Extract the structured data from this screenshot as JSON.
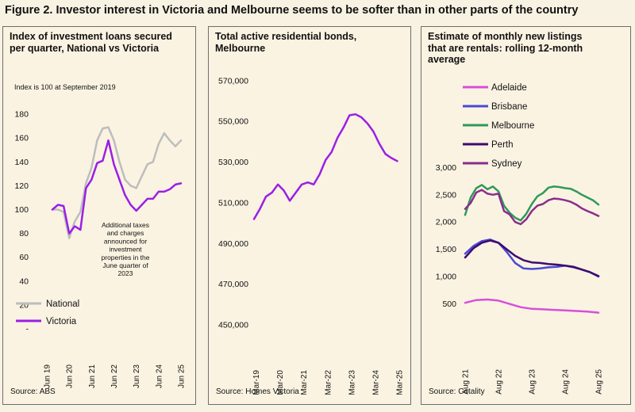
{
  "figure_title": "Figure 2. Investor interest in Victoria and Melbourne seems to be softer than in other parts of the country",
  "colors": {
    "background": "#f8f2e3",
    "national": "#bdbdbd",
    "victoria": "#9b1fe5",
    "melbourne_bonds": "#9b1fe5",
    "adelaide": "#d84fd8",
    "brisbane": "#4a49d6",
    "melbourne": "#2f9a5a",
    "perth": "#3f0a6e",
    "sydney": "#8a2d8c"
  },
  "panels": [
    {
      "title": "Index of investment loans secured per quarter, National vs Victoria",
      "note": "Index is 100 at September 2019",
      "source": "Source: ABS",
      "annotation": [
        "Additional taxes",
        "and charges",
        "announced for",
        "investment",
        "properties in the",
        "June quarter of",
        "2023"
      ]
    },
    {
      "title": "Total active residential bonds, Melbourne",
      "source": "Source: Homes Victoria"
    },
    {
      "title": "Estimate of monthly new listings that are rentals: rolling 12-month average",
      "source": "Source: Cotality"
    }
  ],
  "chart_data": [
    {
      "type": "line",
      "title": "Index of investment loans secured per quarter, National vs Victoria",
      "ylim": [
        0,
        190
      ],
      "yticks": [
        0,
        20,
        40,
        60,
        80,
        100,
        120,
        140,
        160,
        180
      ],
      "ytick_labels": [
        "-",
        "20",
        "40",
        "60",
        "80",
        "100",
        "120",
        "140",
        "160",
        "180"
      ],
      "xlim": [
        0,
        24
      ],
      "xticks": [
        0,
        4,
        8,
        12,
        16,
        20,
        24
      ],
      "xtick_labels": [
        "Jun 19",
        "Jun 20",
        "Jun 21",
        "Jun 22",
        "Jun 23",
        "Jun 24",
        "Jun 25"
      ],
      "legend": "bottom-left",
      "series": [
        {
          "name": "National",
          "x": [
            1,
            2,
            3,
            4,
            5,
            6,
            7,
            8,
            9,
            10,
            11,
            12,
            13,
            14,
            15,
            16,
            17,
            18,
            19,
            20,
            21,
            22,
            23,
            24
          ],
          "values": [
            100,
            100,
            98,
            76,
            90,
            98,
            122,
            135,
            158,
            168,
            169,
            158,
            140,
            125,
            120,
            118,
            128,
            138,
            140,
            155,
            164,
            158,
            153,
            158
          ]
        },
        {
          "name": "Victoria",
          "x": [
            1,
            2,
            3,
            4,
            5,
            6,
            7,
            8,
            9,
            10,
            11,
            12,
            13,
            14,
            15,
            16,
            17,
            18,
            19,
            20,
            21,
            22,
            23,
            24
          ],
          "values": [
            100,
            104,
            103,
            80,
            86,
            83,
            118,
            125,
            139,
            141,
            158,
            138,
            125,
            112,
            104,
            99,
            104,
            109,
            109,
            115,
            115,
            117,
            121,
            122
          ]
        }
      ]
    },
    {
      "type": "line",
      "title": "Total active residential bonds, Melbourne",
      "ylim": [
        450000,
        575000
      ],
      "yticks": [
        450000,
        470000,
        490000,
        510000,
        530000,
        550000,
        570000
      ],
      "ytick_labels": [
        "450,000",
        "470,000",
        "490,000",
        "510,000",
        "530,000",
        "550,000",
        "570,000"
      ],
      "xlim": [
        0,
        73
      ],
      "xticks": [
        1,
        13,
        25,
        37,
        49,
        61,
        73
      ],
      "xtick_labels": [
        "Mar-19",
        "Mar-20",
        "Mar-21",
        "Mar-22",
        "Mar-23",
        "Mar-24",
        "Mar-25"
      ],
      "series": [
        {
          "name": "Melbourne",
          "x": [
            0,
            3,
            6,
            9,
            12,
            15,
            18,
            21,
            24,
            27,
            30,
            33,
            36,
            39,
            42,
            45,
            48,
            51,
            54,
            57,
            60,
            63,
            66,
            69,
            72
          ],
          "values": [
            502000,
            507000,
            513000,
            515000,
            519000,
            516000,
            511000,
            515000,
            519000,
            520000,
            519000,
            524000,
            531000,
            535000,
            542000,
            547000,
            553000,
            553500,
            552000,
            549000,
            545000,
            539000,
            534000,
            532000,
            530500
          ]
        }
      ]
    },
    {
      "type": "line",
      "title": "Estimate of monthly new listings that are rentals: rolling 12-month average",
      "ylim": [
        0,
        3150
      ],
      "yticks": [
        500,
        1000,
        1500,
        2000,
        2500,
        3000
      ],
      "ytick_labels": [
        "500",
        "1,000",
        "1,500",
        "2,000",
        "2,500",
        "3,000"
      ],
      "xlim": [
        0,
        48
      ],
      "xticks": [
        0,
        12,
        24,
        36,
        48
      ],
      "xtick_labels": [
        "Aug 21",
        "Aug 22",
        "Aug 23",
        "Aug 24",
        "Aug 25"
      ],
      "legend": "top-left",
      "series": [
        {
          "name": "Adelaide",
          "x": [
            0,
            4,
            8,
            12,
            16,
            20,
            24,
            28,
            32,
            36,
            40,
            44,
            48
          ],
          "values": [
            520,
            570,
            580,
            560,
            500,
            440,
            410,
            400,
            390,
            380,
            370,
            360,
            340
          ]
        },
        {
          "name": "Brisbane",
          "x": [
            0,
            3,
            6,
            9,
            12,
            15,
            18,
            21,
            24,
            27,
            30,
            33,
            36,
            39,
            42,
            45,
            48
          ],
          "values": [
            1420,
            1560,
            1650,
            1680,
            1620,
            1450,
            1250,
            1150,
            1140,
            1150,
            1170,
            1180,
            1200,
            1170,
            1130,
            1080,
            1000
          ]
        },
        {
          "name": "Melbourne",
          "x": [
            0,
            2,
            4,
            6,
            8,
            10,
            12,
            14,
            16,
            18,
            20,
            22,
            24,
            26,
            28,
            30,
            32,
            34,
            36,
            38,
            40,
            42,
            44,
            46,
            48
          ],
          "values": [
            2130,
            2450,
            2620,
            2680,
            2600,
            2650,
            2560,
            2300,
            2170,
            2080,
            2030,
            2150,
            2330,
            2470,
            2530,
            2630,
            2650,
            2640,
            2620,
            2610,
            2560,
            2500,
            2450,
            2400,
            2320
          ]
        },
        {
          "name": "Perth",
          "x": [
            0,
            3,
            6,
            9,
            12,
            15,
            18,
            21,
            24,
            27,
            30,
            33,
            36,
            39,
            42,
            45,
            48
          ],
          "values": [
            1350,
            1520,
            1620,
            1660,
            1620,
            1500,
            1380,
            1300,
            1260,
            1250,
            1230,
            1220,
            1200,
            1180,
            1130,
            1080,
            1010
          ]
        },
        {
          "name": "Sydney",
          "x": [
            0,
            2,
            4,
            6,
            8,
            10,
            12,
            14,
            16,
            18,
            20,
            22,
            24,
            26,
            28,
            30,
            32,
            34,
            36,
            38,
            40,
            42,
            44,
            46,
            48
          ],
          "values": [
            2240,
            2350,
            2540,
            2590,
            2520,
            2500,
            2520,
            2200,
            2140,
            2000,
            1960,
            2050,
            2200,
            2300,
            2330,
            2400,
            2430,
            2420,
            2400,
            2370,
            2320,
            2250,
            2200,
            2160,
            2110
          ]
        }
      ]
    }
  ]
}
